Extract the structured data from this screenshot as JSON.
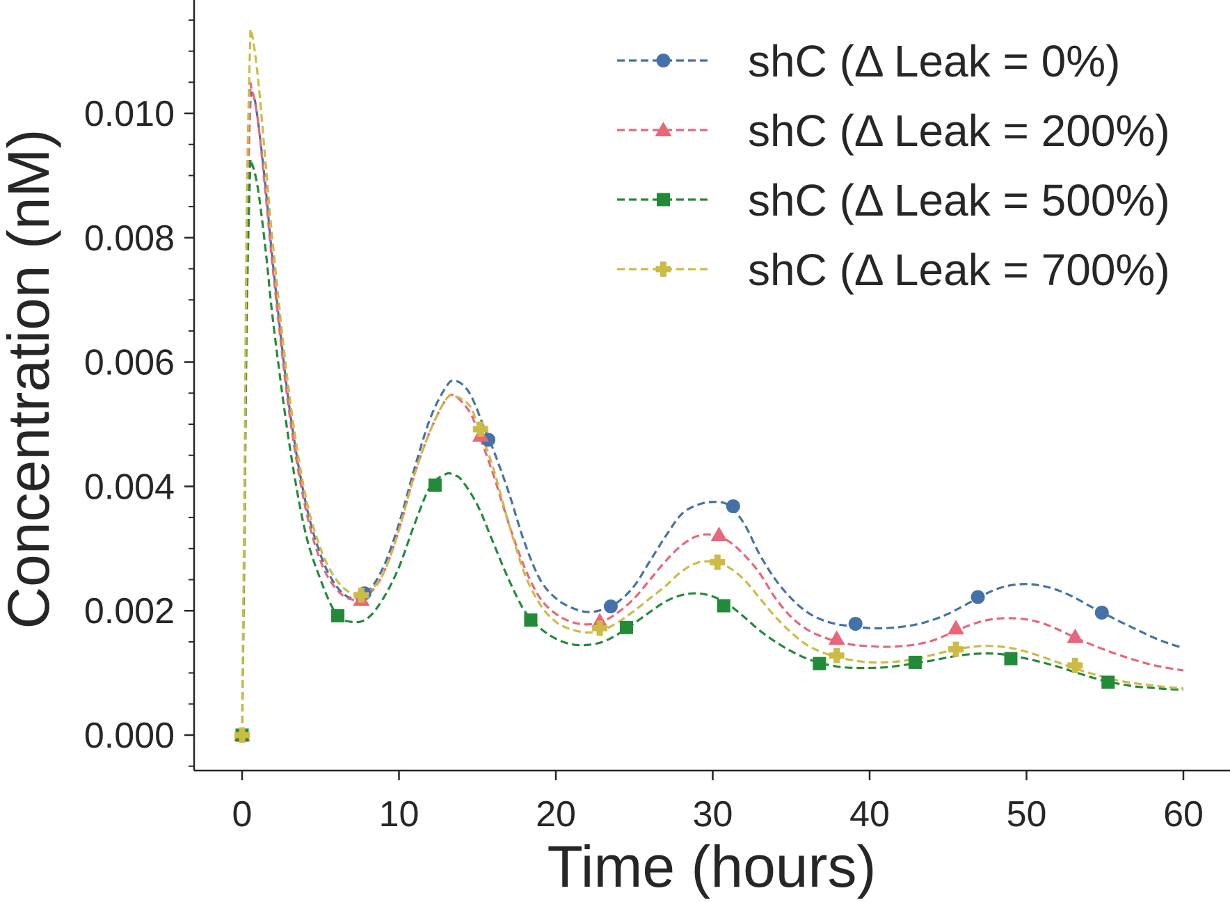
{
  "chart_data": {
    "type": "line",
    "title": "",
    "xlabel": "Time (hours)",
    "ylabel": "Concentration (nM)",
    "xlim": [
      -3,
      63
    ],
    "ylim": [
      -0.0006,
      0.0118
    ],
    "xticks": [
      0,
      10,
      20,
      30,
      40,
      50,
      60
    ],
    "xtick_labels": [
      "0",
      "10",
      "20",
      "30",
      "40",
      "50",
      "60"
    ],
    "yticks": [
      0.0,
      0.002,
      0.004,
      0.006,
      0.008,
      0.01
    ],
    "ytick_labels": [
      "0.000",
      "0.002",
      "0.004",
      "0.006",
      "0.008",
      "0.010"
    ],
    "y_minor_tick_step": 0.0005,
    "grid": false,
    "legend_position": "top-right",
    "line_style": "dashed",
    "series": [
      {
        "name": "shC (Δ Leak = 0%)",
        "color": "#4472a8",
        "marker": "circle",
        "curve": [
          [
            0,
            0
          ],
          [
            0.15,
            0.0035
          ],
          [
            0.3,
            0.0075
          ],
          [
            0.5,
            0.01
          ],
          [
            0.7,
            0.0103
          ],
          [
            1,
            0.0099
          ],
          [
            1.5,
            0.0088
          ],
          [
            2,
            0.0075
          ],
          [
            3,
            0.0053
          ],
          [
            4,
            0.0038
          ],
          [
            5,
            0.0029
          ],
          [
            6,
            0.0024
          ],
          [
            7,
            0.0022
          ],
          [
            8,
            0.0023
          ],
          [
            9,
            0.0027
          ],
          [
            10,
            0.0034
          ],
          [
            11,
            0.0043
          ],
          [
            12,
            0.0051
          ],
          [
            13,
            0.0056
          ],
          [
            13.6,
            0.0057
          ],
          [
            14.5,
            0.0055
          ],
          [
            15.5,
            0.0049
          ],
          [
            16,
            0.0046
          ],
          [
            17,
            0.0039
          ],
          [
            18,
            0.0031
          ],
          [
            19,
            0.0025
          ],
          [
            20,
            0.0022
          ],
          [
            21,
            0.00205
          ],
          [
            22,
            0.00198
          ],
          [
            23,
            0.00202
          ],
          [
            24,
            0.00215
          ],
          [
            25,
            0.0024
          ],
          [
            26,
            0.0028
          ],
          [
            27,
            0.0032
          ],
          [
            28,
            0.00355
          ],
          [
            29,
            0.0037
          ],
          [
            30,
            0.00375
          ],
          [
            31,
            0.0037
          ],
          [
            32,
            0.0034
          ],
          [
            33,
            0.0029
          ],
          [
            34,
            0.0025
          ],
          [
            35,
            0.0022
          ],
          [
            36,
            0.00198
          ],
          [
            37,
            0.00185
          ],
          [
            38,
            0.00178
          ],
          [
            39,
            0.00175
          ],
          [
            40,
            0.00172
          ],
          [
            41,
            0.00172
          ],
          [
            42,
            0.00174
          ],
          [
            43,
            0.00178
          ],
          [
            44,
            0.00185
          ],
          [
            45,
            0.00195
          ],
          [
            46,
            0.00208
          ],
          [
            47,
            0.00222
          ],
          [
            48,
            0.00234
          ],
          [
            49,
            0.00241
          ],
          [
            50,
            0.00243
          ],
          [
            51,
            0.0024
          ],
          [
            52,
            0.00233
          ],
          [
            53,
            0.00222
          ],
          [
            54,
            0.00208
          ],
          [
            55,
            0.00195
          ],
          [
            56,
            0.00182
          ],
          [
            57,
            0.0017
          ],
          [
            58,
            0.00158
          ],
          [
            59,
            0.00148
          ],
          [
            60,
            0.0014
          ]
        ],
        "markers": [
          [
            0,
            0
          ],
          [
            7.8,
            0.00228
          ],
          [
            15.7,
            0.00475
          ],
          [
            23.5,
            0.00207
          ],
          [
            31.3,
            0.00368
          ],
          [
            39.1,
            0.00179
          ],
          [
            46.9,
            0.00222
          ],
          [
            54.8,
            0.00197
          ]
        ]
      },
      {
        "name": "shC (Δ Leak = 200%)",
        "color": "#e8667a",
        "marker": "triangle",
        "curve": [
          [
            0,
            0
          ],
          [
            0.15,
            0.0036
          ],
          [
            0.3,
            0.0077
          ],
          [
            0.5,
            0.0102
          ],
          [
            0.6,
            0.0104
          ],
          [
            1,
            0.0099
          ],
          [
            1.5,
            0.0087
          ],
          [
            2,
            0.0074
          ],
          [
            3,
            0.0052
          ],
          [
            4,
            0.0037
          ],
          [
            5,
            0.0028
          ],
          [
            6,
            0.00235
          ],
          [
            7,
            0.00218
          ],
          [
            8,
            0.00225
          ],
          [
            9,
            0.0026
          ],
          [
            10,
            0.0033
          ],
          [
            11,
            0.0042
          ],
          [
            12,
            0.0049
          ],
          [
            13,
            0.0054
          ],
          [
            13.6,
            0.00545
          ],
          [
            14.5,
            0.0052
          ],
          [
            15,
            0.0049
          ],
          [
            16,
            0.0042
          ],
          [
            17,
            0.0034
          ],
          [
            18,
            0.0027
          ],
          [
            19,
            0.0022
          ],
          [
            20,
            0.00195
          ],
          [
            21,
            0.00182
          ],
          [
            22,
            0.00178
          ],
          [
            23,
            0.00183
          ],
          [
            24,
            0.00198
          ],
          [
            25,
            0.0022
          ],
          [
            26,
            0.0025
          ],
          [
            27,
            0.0028
          ],
          [
            28,
            0.00305
          ],
          [
            29,
            0.0032
          ],
          [
            30,
            0.00322
          ],
          [
            31,
            0.00312
          ],
          [
            32,
            0.0029
          ],
          [
            33,
            0.0026
          ],
          [
            34,
            0.0022
          ],
          [
            35,
            0.0019
          ],
          [
            36,
            0.0017
          ],
          [
            37,
            0.00158
          ],
          [
            38,
            0.0015
          ],
          [
            39,
            0.00145
          ],
          [
            40,
            0.00143
          ],
          [
            41,
            0.00142
          ],
          [
            42,
            0.00143
          ],
          [
            43,
            0.00146
          ],
          [
            44,
            0.00152
          ],
          [
            45,
            0.00162
          ],
          [
            46,
            0.00173
          ],
          [
            47,
            0.00182
          ],
          [
            48,
            0.00187
          ],
          [
            49,
            0.00188
          ],
          [
            50,
            0.00186
          ],
          [
            51,
            0.0018
          ],
          [
            52,
            0.0017
          ],
          [
            53,
            0.00158
          ],
          [
            54,
            0.00147
          ],
          [
            55,
            0.00137
          ],
          [
            56,
            0.00128
          ],
          [
            57,
            0.0012
          ],
          [
            58,
            0.00113
          ],
          [
            59,
            0.00108
          ],
          [
            60,
            0.00104
          ]
        ],
        "markers": [
          [
            0,
            0
          ],
          [
            7.6,
            0.00218
          ],
          [
            15.2,
            0.00482
          ],
          [
            22.8,
            0.00183
          ],
          [
            30.4,
            0.00322
          ],
          [
            37.9,
            0.00155
          ],
          [
            45.5,
            0.00172
          ],
          [
            53.1,
            0.00158
          ]
        ]
      },
      {
        "name": "shC (Δ Leak = 500%)",
        "color": "#238a3a",
        "marker": "square",
        "curve": [
          [
            0,
            0
          ],
          [
            0.15,
            0.0032
          ],
          [
            0.3,
            0.0068
          ],
          [
            0.5,
            0.009
          ],
          [
            0.6,
            0.0092
          ],
          [
            1,
            0.0088
          ],
          [
            1.5,
            0.0078
          ],
          [
            2,
            0.0066
          ],
          [
            3,
            0.0047
          ],
          [
            4,
            0.0033
          ],
          [
            5,
            0.0025
          ],
          [
            6,
            0.00195
          ],
          [
            7,
            0.00182
          ],
          [
            8,
            0.00188
          ],
          [
            9,
            0.0022
          ],
          [
            10,
            0.0027
          ],
          [
            11,
            0.0034
          ],
          [
            12,
            0.004
          ],
          [
            13,
            0.0042
          ],
          [
            13.5,
            0.00418
          ],
          [
            14,
            0.0041
          ],
          [
            15,
            0.0037
          ],
          [
            16,
            0.0031
          ],
          [
            17,
            0.0025
          ],
          [
            18,
            0.002
          ],
          [
            19,
            0.00172
          ],
          [
            20,
            0.00155
          ],
          [
            21,
            0.00146
          ],
          [
            22,
            0.00145
          ],
          [
            23,
            0.0015
          ],
          [
            24,
            0.00163
          ],
          [
            25,
            0.0018
          ],
          [
            26,
            0.00198
          ],
          [
            27,
            0.00215
          ],
          [
            28,
            0.00225
          ],
          [
            29,
            0.00228
          ],
          [
            30,
            0.00223
          ],
          [
            31,
            0.0021
          ],
          [
            32,
            0.0019
          ],
          [
            33,
            0.00168
          ],
          [
            34,
            0.0015
          ],
          [
            35,
            0.00135
          ],
          [
            36,
            0.00123
          ],
          [
            37,
            0.00115
          ],
          [
            38,
            0.0011
          ],
          [
            39,
            0.00108
          ],
          [
            40,
            0.00108
          ],
          [
            41,
            0.00109
          ],
          [
            42,
            0.00112
          ],
          [
            43,
            0.00116
          ],
          [
            44,
            0.0012
          ],
          [
            45,
            0.00125
          ],
          [
            46,
            0.00129
          ],
          [
            47,
            0.00131
          ],
          [
            48,
            0.00131
          ],
          [
            49,
            0.00128
          ],
          [
            50,
            0.00123
          ],
          [
            51,
            0.00117
          ],
          [
            52,
            0.0011
          ],
          [
            53,
            0.00102
          ],
          [
            54,
            0.00094
          ],
          [
            55,
            0.00087
          ],
          [
            56,
            0.00082
          ],
          [
            57,
            0.00078
          ],
          [
            58,
            0.00076
          ],
          [
            59,
            0.00074
          ],
          [
            60,
            0.00073
          ]
        ],
        "markers": [
          [
            0,
            0
          ],
          [
            6.1,
            0.00192
          ],
          [
            12.3,
            0.00402
          ],
          [
            18.4,
            0.00185
          ],
          [
            24.5,
            0.00173
          ],
          [
            30.7,
            0.00208
          ],
          [
            36.8,
            0.00115
          ],
          [
            42.9,
            0.00117
          ],
          [
            49.0,
            0.00123
          ],
          [
            55.2,
            0.00085
          ]
        ]
      },
      {
        "name": "shC (Δ Leak = 700%)",
        "color": "#ccbb44",
        "marker": "plus",
        "curve": [
          [
            0,
            0
          ],
          [
            0.15,
            0.004
          ],
          [
            0.3,
            0.0085
          ],
          [
            0.5,
            0.011
          ],
          [
            0.6,
            0.0113
          ],
          [
            1,
            0.0106
          ],
          [
            1.5,
            0.0092
          ],
          [
            2,
            0.0078
          ],
          [
            3,
            0.0055
          ],
          [
            4,
            0.0039
          ],
          [
            5,
            0.003
          ],
          [
            6,
            0.0025
          ],
          [
            7,
            0.00228
          ],
          [
            8,
            0.0023
          ],
          [
            9,
            0.0026
          ],
          [
            10,
            0.0033
          ],
          [
            11,
            0.0042
          ],
          [
            12,
            0.0049
          ],
          [
            13,
            0.0054
          ],
          [
            13.6,
            0.00545
          ],
          [
            14.5,
            0.0053
          ],
          [
            15,
            0.005
          ],
          [
            16,
            0.0043
          ],
          [
            17,
            0.0034
          ],
          [
            18,
            0.0026
          ],
          [
            19,
            0.0021
          ],
          [
            20,
            0.00182
          ],
          [
            21,
            0.0017
          ],
          [
            22,
            0.00165
          ],
          [
            23,
            0.00169
          ],
          [
            24,
            0.00182
          ],
          [
            25,
            0.002
          ],
          [
            26,
            0.0022
          ],
          [
            27,
            0.0024
          ],
          [
            28,
            0.00263
          ],
          [
            29,
            0.00277
          ],
          [
            30,
            0.00279
          ],
          [
            31,
            0.0027
          ],
          [
            32,
            0.0025
          ],
          [
            33,
            0.0022
          ],
          [
            34,
            0.0019
          ],
          [
            35,
            0.00165
          ],
          [
            36,
            0.00145
          ],
          [
            37,
            0.00133
          ],
          [
            38,
            0.00125
          ],
          [
            39,
            0.0012
          ],
          [
            40,
            0.00117
          ],
          [
            41,
            0.00117
          ],
          [
            42,
            0.00119
          ],
          [
            43,
            0.00123
          ],
          [
            44,
            0.00129
          ],
          [
            45,
            0.00135
          ],
          [
            46,
            0.0014
          ],
          [
            47,
            0.00143
          ],
          [
            48,
            0.00143
          ],
          [
            49,
            0.0014
          ],
          [
            50,
            0.00134
          ],
          [
            51,
            0.00126
          ],
          [
            52,
            0.00117
          ],
          [
            53,
            0.00108
          ],
          [
            54,
            0.001
          ],
          [
            55,
            0.00093
          ],
          [
            56,
            0.00087
          ],
          [
            57,
            0.00083
          ],
          [
            58,
            0.0008
          ],
          [
            59,
            0.00077
          ],
          [
            60,
            0.00075
          ]
        ],
        "markers": [
          [
            0,
            0
          ],
          [
            7.6,
            0.00225
          ],
          [
            15.2,
            0.00492
          ],
          [
            22.8,
            0.00172
          ],
          [
            30.3,
            0.00278
          ],
          [
            37.9,
            0.00128
          ],
          [
            45.5,
            0.00138
          ],
          [
            53.1,
            0.00112
          ]
        ]
      }
    ]
  }
}
